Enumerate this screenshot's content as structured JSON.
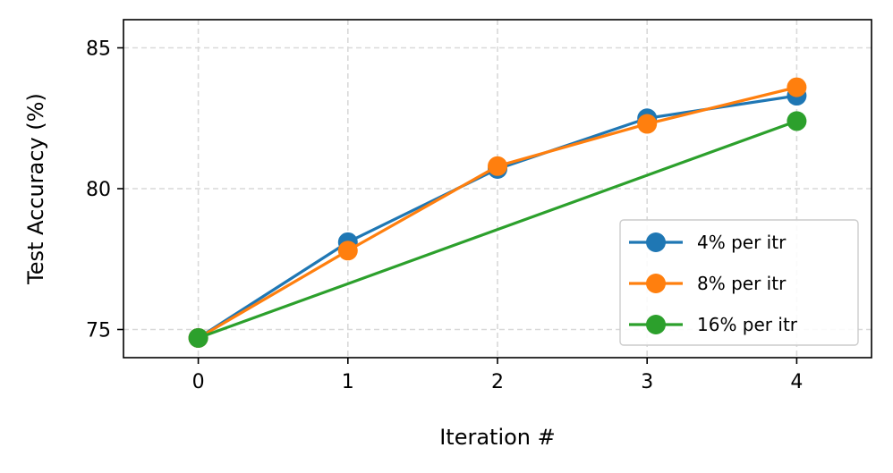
{
  "chart_data": {
    "type": "line",
    "title": "",
    "xlabel": "Iteration #",
    "ylabel": "Test Accuracy (%)",
    "x": [
      0,
      1,
      2,
      3,
      4
    ],
    "xticks": [
      0,
      1,
      2,
      3,
      4
    ],
    "yticks": [
      75,
      80,
      85
    ],
    "xlim": [
      -0.5,
      4.5
    ],
    "ylim": [
      74.0,
      86.0
    ],
    "grid": true,
    "legend_position": "lower-right",
    "series": [
      {
        "name": "4% per itr",
        "color": "#1f77b4",
        "x": [
          0,
          1,
          2,
          3,
          4
        ],
        "values": [
          74.7,
          78.1,
          80.7,
          82.5,
          83.3
        ]
      },
      {
        "name": "8% per itr",
        "color": "#ff7f0e",
        "x": [
          0,
          1,
          2,
          3,
          4
        ],
        "values": [
          74.7,
          77.8,
          80.8,
          82.3,
          83.6
        ]
      },
      {
        "name": "16% per itr",
        "color": "#2ca02c",
        "x": [
          0,
          4
        ],
        "values": [
          74.7,
          82.4
        ]
      }
    ]
  }
}
